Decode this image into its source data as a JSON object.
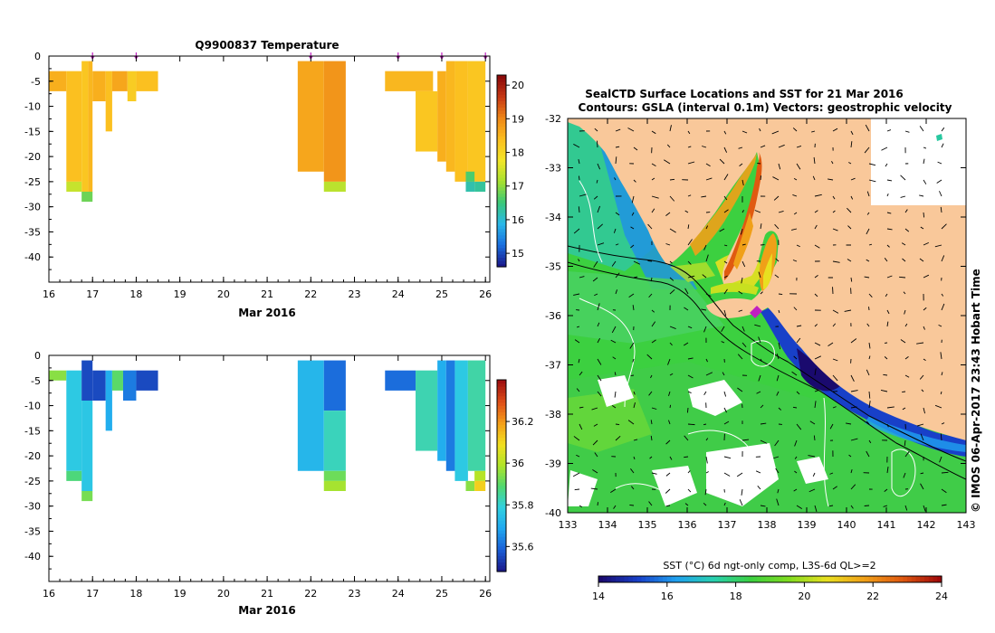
{
  "colors": {
    "land": "#f9c89a",
    "axis": "#000000",
    "temp_fill": "#fbd230",
    "temp_scale": [
      "#1a1a8c",
      "#1a70e0",
      "#2ab8e8",
      "#3ac878",
      "#a6e030",
      "#f2e628",
      "#fbc020",
      "#f08a18",
      "#c83a14",
      "#8c0a0a"
    ],
    "sal_scale": [
      "#1a1a8c",
      "#1a60d8",
      "#20a8f0",
      "#30d0e0",
      "#50d870",
      "#b0e428",
      "#f2e020",
      "#f4a018",
      "#e05018",
      "#a01010"
    ],
    "sst_scale": [
      "#1a0a6e",
      "#1840c8",
      "#20a0f0",
      "#28d0b0",
      "#3cd040",
      "#80dc20",
      "#e8e020",
      "#f0a018",
      "#e05a10",
      "#a00a0a"
    ],
    "station_marker": "#c020c0"
  },
  "chart_data": [
    {
      "type": "heatmap",
      "title": "Q9900837  Temperature",
      "xlabel": "Mar 2016",
      "ylabel": "",
      "x_ticks": [
        "16",
        "17",
        "18",
        "19",
        "20",
        "21",
        "22",
        "23",
        "24",
        "25",
        "26"
      ],
      "y_ticks": [
        "0",
        "-5",
        "-10",
        "-15",
        "-20",
        "-25",
        "-30",
        "-35",
        "-40"
      ],
      "xlim": [
        16,
        26.1
      ],
      "ylim": [
        -45,
        0
      ],
      "colorbar": {
        "min": 14.6,
        "max": 20.3,
        "ticks": [
          "15",
          "16",
          "17",
          "18",
          "19",
          "20"
        ]
      },
      "station_days": [
        17.0,
        18.0,
        22.0,
        24.0,
        25.0,
        26.0
      ],
      "profiles": [
        {
          "x0": 16.0,
          "x1": 16.4,
          "z0": -3,
          "z1": -7,
          "value": 18.6
        },
        {
          "x0": 16.4,
          "x1": 16.75,
          "z0": -3,
          "z1": -25,
          "value": 18.4
        },
        {
          "x0": 16.75,
          "x1": 16.9,
          "z0": -1,
          "z1": -27,
          "value": 18.3
        },
        {
          "x0": 16.9,
          "x1": 17.0,
          "z0": -1,
          "z1": -27,
          "value": 18.5
        },
        {
          "x0": 17.0,
          "x1": 17.3,
          "z0": -3,
          "z1": -9,
          "value": 18.6
        },
        {
          "x0": 17.3,
          "x1": 17.45,
          "z0": -3,
          "z1": -15,
          "value": 18.4
        },
        {
          "x0": 17.45,
          "x1": 17.8,
          "z0": -3,
          "z1": -7,
          "value": 18.7
        },
        {
          "x0": 17.8,
          "x1": 18.0,
          "z0": -3,
          "z1": -9,
          "value": 18.2
        },
        {
          "x0": 18.0,
          "x1": 18.5,
          "z0": -3,
          "z1": -7,
          "value": 18.4
        },
        {
          "x0": 21.7,
          "x1": 22.3,
          "z0": -1,
          "z1": -23,
          "value": 18.7
        },
        {
          "x0": 22.3,
          "x1": 22.8,
          "z0": -1,
          "z1": -25,
          "value": 18.9
        },
        {
          "x0": 23.7,
          "x1": 24.8,
          "z0": -3,
          "z1": -7,
          "value": 18.5
        },
        {
          "x0": 24.4,
          "x1": 24.9,
          "z0": -7,
          "z1": -19,
          "value": 18.3
        },
        {
          "x0": 24.9,
          "x1": 25.1,
          "z0": -3,
          "z1": -21,
          "value": 18.6
        },
        {
          "x0": 25.1,
          "x1": 25.3,
          "z0": -1,
          "z1": -23,
          "value": 18.5
        },
        {
          "x0": 25.3,
          "x1": 25.6,
          "z0": -1,
          "z1": -25,
          "value": 18.4
        },
        {
          "x0": 25.6,
          "x1": 26.0,
          "z0": -1,
          "z1": -25,
          "value": 18.3
        }
      ],
      "deep_cells": [
        {
          "x0": 16.4,
          "x1": 16.75,
          "z0": -25,
          "z1": -27,
          "value": 17.4
        },
        {
          "x0": 16.75,
          "x1": 17.0,
          "z0": -27,
          "z1": -29,
          "value": 16.8
        },
        {
          "x0": 22.3,
          "x1": 22.8,
          "z0": -25,
          "z1": -27,
          "value": 17.3
        },
        {
          "x0": 25.55,
          "x1": 25.75,
          "z0": -23,
          "z1": -25,
          "value": 16.6
        },
        {
          "x0": 25.55,
          "x1": 25.75,
          "z0": -25,
          "z1": -27,
          "value": 16.2
        },
        {
          "x0": 25.75,
          "x1": 26.0,
          "z0": -25,
          "z1": -27,
          "value": 16.3
        }
      ]
    },
    {
      "type": "heatmap",
      "title": "",
      "xlabel": "Mar 2016",
      "ylabel": "",
      "x_ticks": [
        "16",
        "17",
        "18",
        "19",
        "20",
        "21",
        "22",
        "23",
        "24",
        "25",
        "26"
      ],
      "y_ticks": [
        "0",
        "-5",
        "-10",
        "-15",
        "-20",
        "-25",
        "-30",
        "-35",
        "-40"
      ],
      "xlim": [
        16,
        26.1
      ],
      "ylim": [
        -45,
        0
      ],
      "colorbar": {
        "min": 35.48,
        "max": 36.4,
        "ticks": [
          "35.6",
          "35.8",
          "36",
          "36.2"
        ]
      },
      "profiles": [
        {
          "x0": 16.0,
          "x1": 16.4,
          "z0": -3,
          "z1": -5,
          "value": 35.95
        },
        {
          "x0": 16.4,
          "x1": 16.75,
          "z0": -3,
          "z1": -23,
          "value": 35.77
        },
        {
          "x0": 16.75,
          "x1": 17.0,
          "z0": -1,
          "z1": -9,
          "value": 35.55
        },
        {
          "x0": 16.75,
          "x1": 17.0,
          "z0": -9,
          "z1": -27,
          "value": 35.76
        },
        {
          "x0": 17.0,
          "x1": 17.3,
          "z0": -3,
          "z1": -9,
          "value": 35.55
        },
        {
          "x0": 17.3,
          "x1": 17.45,
          "z0": -3,
          "z1": -15,
          "value": 35.7
        },
        {
          "x0": 17.45,
          "x1": 17.7,
          "z0": -3,
          "z1": -7,
          "value": 35.9
        },
        {
          "x0": 17.7,
          "x1": 18.0,
          "z0": -3,
          "z1": -9,
          "value": 35.62
        },
        {
          "x0": 18.0,
          "x1": 18.5,
          "z0": -3,
          "z1": -7,
          "value": 35.55
        },
        {
          "x0": 21.7,
          "x1": 22.3,
          "z0": -1,
          "z1": -23,
          "value": 35.72
        },
        {
          "x0": 22.3,
          "x1": 22.8,
          "z0": -1,
          "z1": -11,
          "value": 35.6
        },
        {
          "x0": 22.3,
          "x1": 22.8,
          "z0": -11,
          "z1": -23,
          "value": 35.82
        },
        {
          "x0": 23.7,
          "x1": 24.4,
          "z0": -3,
          "z1": -7,
          "value": 35.6
        },
        {
          "x0": 24.4,
          "x1": 24.9,
          "z0": -3,
          "z1": -19,
          "value": 35.83
        },
        {
          "x0": 24.9,
          "x1": 25.1,
          "z0": -1,
          "z1": -21,
          "value": 35.7
        },
        {
          "x0": 25.1,
          "x1": 25.3,
          "z0": -1,
          "z1": -23,
          "value": 35.62
        },
        {
          "x0": 25.3,
          "x1": 25.6,
          "z0": -1,
          "z1": -25,
          "value": 35.77
        },
        {
          "x0": 25.6,
          "x1": 26.0,
          "z0": -1,
          "z1": -23,
          "value": 35.84
        }
      ],
      "deep_cells": [
        {
          "x0": 16.4,
          "x1": 16.75,
          "z0": -23,
          "z1": -25,
          "value": 35.88
        },
        {
          "x0": 16.75,
          "x1": 17.0,
          "z0": -27,
          "z1": -29,
          "value": 35.93
        },
        {
          "x0": 22.3,
          "x1": 22.8,
          "z0": -23,
          "z1": -25,
          "value": 35.92
        },
        {
          "x0": 22.3,
          "x1": 22.8,
          "z0": -25,
          "z1": -27,
          "value": 35.98
        },
        {
          "x0": 25.55,
          "x1": 25.75,
          "z0": -25,
          "z1": -27,
          "value": 35.95
        },
        {
          "x0": 25.75,
          "x1": 26.0,
          "z0": -23,
          "z1": -25,
          "value": 36.0
        },
        {
          "x0": 25.75,
          "x1": 26.0,
          "z0": -25,
          "z1": -27,
          "value": 36.12
        }
      ]
    },
    {
      "type": "heatmap",
      "title": "SealCTD Surface Locations and SST for 21 Mar 2016",
      "subtitle": "Contours: GSLA (interval 0.1m) Vectors: geostrophic velocity",
      "side_label": "© IMOS 06-Apr-2017 23:43 Hobart Time",
      "x_ticks": [
        "133",
        "134",
        "135",
        "136",
        "137",
        "138",
        "139",
        "140",
        "141",
        "142",
        "143"
      ],
      "y_ticks": [
        "-32",
        "-33",
        "-34",
        "-35",
        "-36",
        "-37",
        "-38",
        "-39",
        "-40"
      ],
      "xlim": [
        133,
        143
      ],
      "ylim": [
        -40,
        -32
      ],
      "colorbar": {
        "label": "SST (°C) 6d ngt-only comp, L3S-6d QL>=2",
        "min": 14,
        "max": 24,
        "ticks": [
          "14",
          "16",
          "18",
          "20",
          "22",
          "24"
        ]
      }
    }
  ]
}
